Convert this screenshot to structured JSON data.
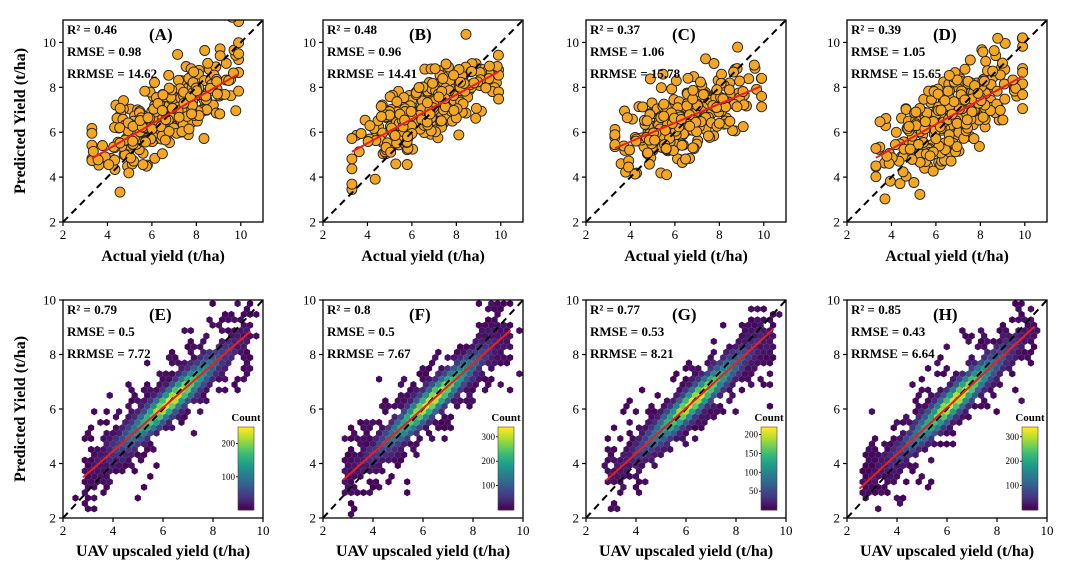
{
  "figure": {
    "ylabel": "Predicted Yield (t/ha)",
    "colorbar_title": "Count",
    "colors": {
      "point_fill": "#f5a623",
      "point_edge": "#222222",
      "fit_line": "#e8201f",
      "identity_line": "#000000",
      "viridis": [
        "#440154",
        "#482878",
        "#3e4989",
        "#31688e",
        "#26828e",
        "#1f9e89",
        "#35b779",
        "#6ece58",
        "#b5de2b",
        "#fde725"
      ]
    }
  },
  "chart_data": [
    {
      "type": "scatter",
      "panel": "(A)",
      "xlabel": "Actual yield (t/ha)",
      "ylabel": "Predicted Yield (t/ha)",
      "xlim": [
        2,
        11
      ],
      "ylim": [
        2,
        11
      ],
      "xticks": [
        2,
        4,
        6,
        8,
        10
      ],
      "yticks": [
        2,
        4,
        6,
        8,
        10
      ],
      "stats": [
        "R² = 0.46",
        "RMSE = 0.98",
        "RRMSE = 14.62"
      ],
      "fit": {
        "slope": 0.57,
        "intercept": 2.95
      },
      "x_range": [
        3.3,
        9.9
      ],
      "resid_sd": 0.78,
      "n": 300,
      "seed": 11
    },
    {
      "type": "scatter",
      "panel": "(B)",
      "xlabel": "Actual yield (t/ha)",
      "ylabel": "",
      "xlim": [
        2,
        11
      ],
      "ylim": [
        2,
        11
      ],
      "xticks": [
        2,
        4,
        6,
        8,
        10
      ],
      "yticks": [
        2,
        4,
        6,
        8,
        10
      ],
      "stats": [
        "R² = 0.48",
        "RMSE = 0.96",
        "RRMSE = 14.41"
      ],
      "fit": {
        "slope": 0.54,
        "intercept": 3.35
      },
      "x_range": [
        3.3,
        9.9
      ],
      "resid_sd": 0.75,
      "n": 300,
      "seed": 23
    },
    {
      "type": "scatter",
      "panel": "(C)",
      "xlabel": "Actual yield (t/ha)",
      "ylabel": "",
      "xlim": [
        2,
        11
      ],
      "ylim": [
        2,
        11
      ],
      "xticks": [
        2,
        4,
        6,
        8,
        10
      ],
      "yticks": [
        2,
        4,
        6,
        8,
        10
      ],
      "stats": [
        "R² = 0.37",
        "RMSE = 1.06",
        "RRMSE = 15.78"
      ],
      "fit": {
        "slope": 0.42,
        "intercept": 3.9
      },
      "x_range": [
        3.3,
        9.9
      ],
      "resid_sd": 0.78,
      "n": 300,
      "seed": 37
    },
    {
      "type": "scatter",
      "panel": "(D)",
      "xlabel": "Actual yield (t/ha)",
      "ylabel": "",
      "xlim": [
        2,
        11
      ],
      "ylim": [
        2,
        11
      ],
      "xticks": [
        2,
        4,
        6,
        8,
        10
      ],
      "yticks": [
        2,
        4,
        6,
        8,
        10
      ],
      "stats": [
        "R² = 0.39",
        "RMSE = 1.05",
        "RRMSE = 15.65"
      ],
      "fit": {
        "slope": 0.55,
        "intercept": 3.05
      },
      "x_range": [
        3.3,
        9.9
      ],
      "resid_sd": 0.95,
      "n": 300,
      "seed": 53
    },
    {
      "type": "heatmap",
      "panel": "(E)",
      "xlabel": "UAV upscaled yield (t/ha)",
      "ylabel": "Predicted Yield (t/ha)",
      "xlim": [
        2,
        10
      ],
      "ylim": [
        2,
        10
      ],
      "xticks": [
        2,
        4,
        6,
        8,
        10
      ],
      "yticks": [
        2,
        4,
        6,
        8,
        10
      ],
      "stats": [
        "R² = 0.79",
        "RMSE = 0.5",
        "RRMSE = 7.72"
      ],
      "fit": {
        "slope": 0.8,
        "intercept": 1.25
      },
      "x_range": [
        2.8,
        9.5
      ],
      "cbar": {
        "max": 250,
        "ticks": [
          100,
          200
        ]
      },
      "seed": 61
    },
    {
      "type": "heatmap",
      "panel": "(F)",
      "xlabel": "UAV upscaled yield (t/ha)",
      "ylabel": "",
      "xlim": [
        2,
        10
      ],
      "ylim": [
        2,
        10
      ],
      "xticks": [
        2,
        4,
        6,
        8,
        10
      ],
      "yticks": [
        2,
        4,
        6,
        8,
        10
      ],
      "stats": [
        "R² = 0.8",
        "RMSE = 0.5",
        "RRMSE = 7.67"
      ],
      "fit": {
        "slope": 0.82,
        "intercept": 1.1
      },
      "x_range": [
        2.8,
        9.5
      ],
      "cbar": {
        "max": 340,
        "ticks": [
          100,
          200,
          300
        ]
      },
      "seed": 71
    },
    {
      "type": "heatmap",
      "panel": "(G)",
      "xlabel": "UAV upscaled yield (t/ha)",
      "ylabel": "",
      "xlim": [
        2,
        10
      ],
      "ylim": [
        2,
        10
      ],
      "xticks": [
        2,
        4,
        6,
        8,
        10
      ],
      "yticks": [
        2,
        4,
        6,
        8,
        10
      ],
      "stats": [
        "R² = 0.77",
        "RMSE = 0.53",
        "RRMSE = 8.21"
      ],
      "fit": {
        "slope": 0.83,
        "intercept": 1.05
      },
      "x_range": [
        2.8,
        9.5
      ],
      "cbar": {
        "max": 220,
        "ticks": [
          50,
          100,
          150,
          200
        ]
      },
      "seed": 83
    },
    {
      "type": "heatmap",
      "panel": "(H)",
      "xlabel": "UAV upscaled yield (t/ha)",
      "ylabel": "",
      "xlim": [
        2,
        10
      ],
      "ylim": [
        2,
        10
      ],
      "xticks": [
        2,
        4,
        6,
        8,
        10
      ],
      "yticks": [
        2,
        4,
        6,
        8,
        10
      ],
      "stats": [
        "R² = 0.85",
        "RMSE = 0.43",
        "RRMSE = 6.64"
      ],
      "fit": {
        "slope": 0.85,
        "intercept": 0.95
      },
      "x_range": [
        2.5,
        9.5
      ],
      "cbar": {
        "max": 340,
        "ticks": [
          100,
          200,
          300
        ]
      },
      "seed": 97
    }
  ]
}
